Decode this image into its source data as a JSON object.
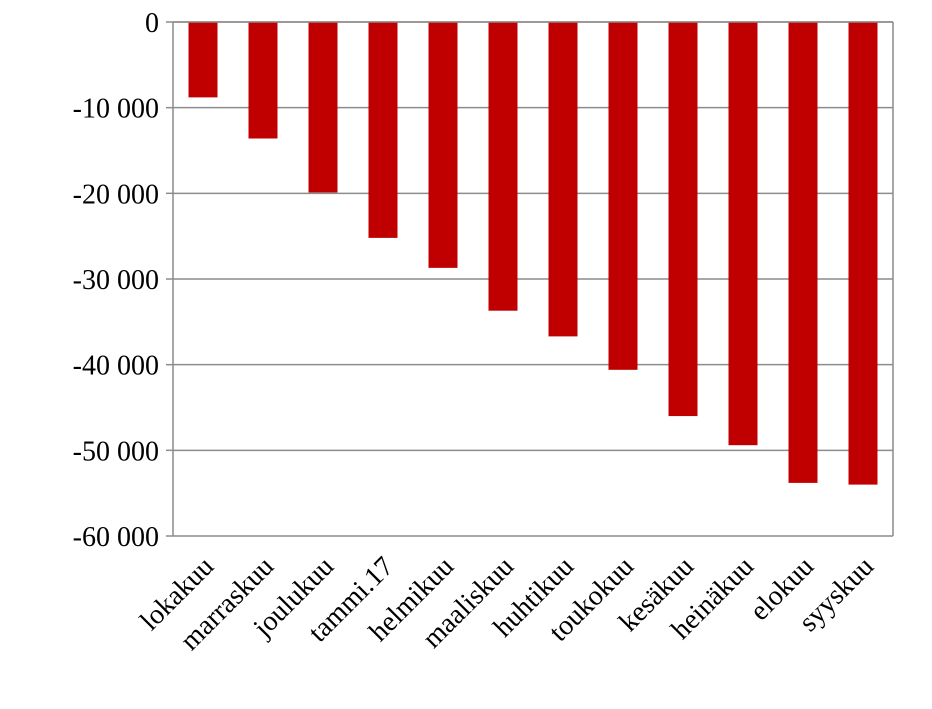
{
  "chart_data": {
    "type": "bar",
    "title": "",
    "xlabel": "",
    "ylabel": "",
    "categories": [
      "lokakuu",
      "marraskuu",
      "joulukuu",
      "tammi.17",
      "helmikuu",
      "maaliskuu",
      "huhtikuu",
      "toukokuu",
      "kesäkuu",
      "heinäkuu",
      "elokuu",
      "syyskuu"
    ],
    "values": [
      -8800,
      -13600,
      -19900,
      -25200,
      -28700,
      -33700,
      -36700,
      -40600,
      -46000,
      -49400,
      -53800,
      -54000
    ],
    "ylim": [
      -60000,
      0
    ],
    "yticks": [
      0,
      -10000,
      -20000,
      -30000,
      -40000,
      -50000,
      -60000
    ],
    "ytick_labels": [
      "0",
      "-10 000",
      "-20 000",
      "-30 000",
      "-40 000",
      "-50 000",
      "-60 000"
    ],
    "grid": true,
    "legend": "none",
    "colors": {
      "bar": "#C00000",
      "grid": "#8C8C8C",
      "axis": "#8C8C8C"
    }
  }
}
